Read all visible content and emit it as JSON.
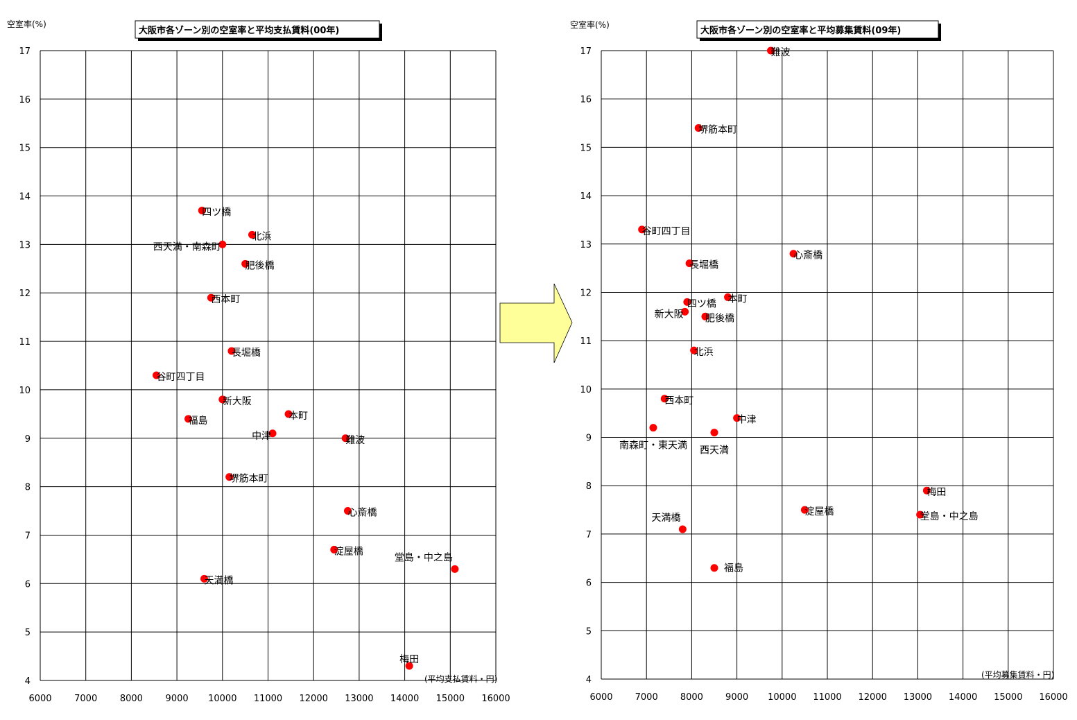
{
  "chart_data": [
    {
      "type": "scatter",
      "title": "大阪市各ゾーン別の空室率と平均支払賃料(00年)",
      "ylabel": "空室率(%)",
      "xlabel": "(平均支払賃料・円)",
      "xlim": [
        6000,
        16000
      ],
      "ylim": [
        4,
        17
      ],
      "xticks": [
        6000,
        7000,
        8000,
        9000,
        10000,
        11000,
        12000,
        13000,
        14000,
        15000,
        16000
      ],
      "yticks": [
        4,
        5,
        6,
        7,
        8,
        9,
        10,
        11,
        12,
        13,
        14,
        15,
        16,
        17
      ],
      "grid": true,
      "marker_color": "#ff0000",
      "points": [
        {
          "label": "四ツ橋",
          "x": 9550,
          "y": 13.7,
          "label_side": "right"
        },
        {
          "label": "北浜",
          "x": 10650,
          "y": 13.2,
          "label_side": "right"
        },
        {
          "label": "西天満・南森町",
          "x": 10000,
          "y": 13.0,
          "label_side": "left"
        },
        {
          "label": "肥後橋",
          "x": 10500,
          "y": 12.6,
          "label_side": "right"
        },
        {
          "label": "西本町",
          "x": 9750,
          "y": 11.9,
          "label_side": "right"
        },
        {
          "label": "長堀橋",
          "x": 10200,
          "y": 10.8,
          "label_side": "right"
        },
        {
          "label": "谷町四丁目",
          "x": 8550,
          "y": 10.3,
          "label_side": "right"
        },
        {
          "label": "新大阪",
          "x": 10000,
          "y": 9.8,
          "label_side": "right"
        },
        {
          "label": "福島",
          "x": 9250,
          "y": 9.4,
          "label_side": "right"
        },
        {
          "label": "本町",
          "x": 11450,
          "y": 9.5,
          "label_side": "right"
        },
        {
          "label": "中津",
          "x": 11100,
          "y": 9.1,
          "label_side": "left"
        },
        {
          "label": "難波",
          "x": 12700,
          "y": 9.0,
          "label_side": "right"
        },
        {
          "label": "堺筋本町",
          "x": 10150,
          "y": 8.2,
          "label_side": "right"
        },
        {
          "label": "心斎橋",
          "x": 12750,
          "y": 7.5,
          "label_side": "right"
        },
        {
          "label": "淀屋橋",
          "x": 12450,
          "y": 6.7,
          "label_side": "right"
        },
        {
          "label": "堂島・中之島",
          "x": 15100,
          "y": 6.3,
          "label_side": "above-left"
        },
        {
          "label": "天満橋",
          "x": 9600,
          "y": 6.1,
          "label_side": "right"
        },
        {
          "label": "梅田",
          "x": 14100,
          "y": 4.3,
          "label_side": "above"
        }
      ]
    },
    {
      "type": "scatter",
      "title": "大阪市各ゾーン別の空室率と平均募集賃料(09年)",
      "ylabel": "空室率(%)",
      "xlabel": "(平均募集賃料・円)",
      "xlim": [
        6000,
        16000
      ],
      "ylim": [
        4,
        17
      ],
      "xticks": [
        6000,
        7000,
        8000,
        9000,
        10000,
        11000,
        12000,
        13000,
        14000,
        15000,
        16000
      ],
      "yticks": [
        4,
        5,
        6,
        7,
        8,
        9,
        10,
        11,
        12,
        13,
        14,
        15,
        16,
        17
      ],
      "grid": true,
      "marker_color": "#ff0000",
      "points": [
        {
          "label": "難波",
          "x": 9750,
          "y": 17.0,
          "label_side": "right"
        },
        {
          "label": "堺筋本町",
          "x": 8150,
          "y": 15.4,
          "label_side": "right"
        },
        {
          "label": "谷町四丁目",
          "x": 6900,
          "y": 13.3,
          "label_side": "right"
        },
        {
          "label": "心斎橋",
          "x": 10250,
          "y": 12.8,
          "label_side": "right"
        },
        {
          "label": "長堀橋",
          "x": 7950,
          "y": 12.6,
          "label_side": "right"
        },
        {
          "label": "四ツ橋",
          "x": 7900,
          "y": 11.8,
          "label_side": "right"
        },
        {
          "label": "本町",
          "x": 8800,
          "y": 11.9,
          "label_side": "right"
        },
        {
          "label": "新大阪",
          "x": 7850,
          "y": 11.6,
          "label_side": "left"
        },
        {
          "label": "肥後橋",
          "x": 8300,
          "y": 11.5,
          "label_side": "right"
        },
        {
          "label": "北浜",
          "x": 8050,
          "y": 10.8,
          "label_side": "right"
        },
        {
          "label": "西本町",
          "x": 7400,
          "y": 9.8,
          "label_side": "right"
        },
        {
          "label": "中津",
          "x": 9000,
          "y": 9.4,
          "label_side": "right"
        },
        {
          "label": "南森町・東天満",
          "x": 7150,
          "y": 9.2,
          "label_side": "below"
        },
        {
          "label": "西天満",
          "x": 8500,
          "y": 9.1,
          "label_side": "below"
        },
        {
          "label": "梅田",
          "x": 13200,
          "y": 7.9,
          "label_side": "right"
        },
        {
          "label": "淀屋橋",
          "x": 10500,
          "y": 7.5,
          "label_side": "right"
        },
        {
          "label": "堂島・中之島",
          "x": 13050,
          "y": 7.4,
          "label_side": "right"
        },
        {
          "label": "天満橋",
          "x": 7800,
          "y": 7.1,
          "label_side": "above-left"
        },
        {
          "label": "福島",
          "x": 8500,
          "y": 6.3,
          "label_side": "right-far"
        }
      ]
    }
  ],
  "arrow_color": "#ffff99"
}
